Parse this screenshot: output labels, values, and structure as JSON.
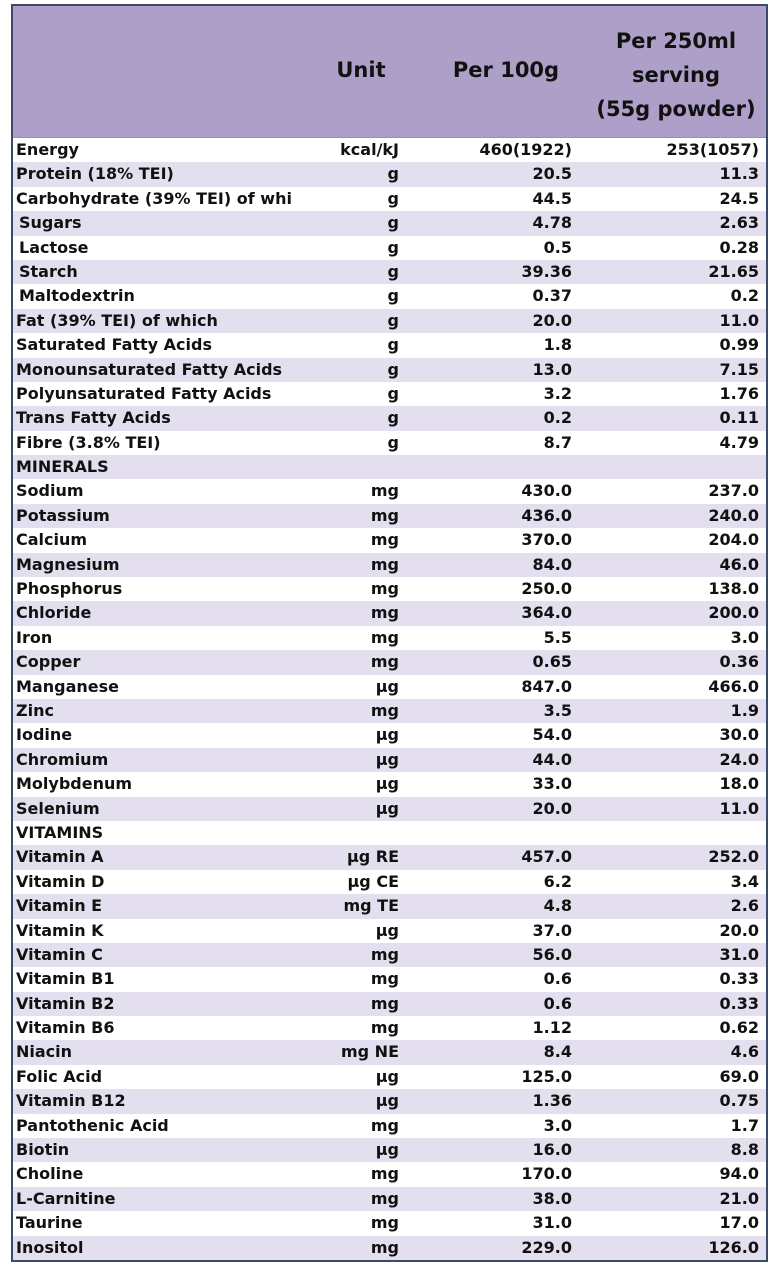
{
  "header": {
    "name": "",
    "unit": "Unit",
    "per_100g": "Per 100g",
    "per_serving_lines": [
      "Per 250ml",
      "serving",
      "(55g powder)"
    ]
  },
  "colors": {
    "header_bg": "#ae9fc8",
    "stripe_bg": "#e3dfee",
    "border": "#3b4a6b"
  },
  "rows": [
    {
      "name": "Energy",
      "unit": "kcal/kJ",
      "per_100g": "460(1922)",
      "per_serving": "253(1057)"
    },
    {
      "name": "Protein (18% TEI)",
      "unit": "g",
      "per_100g": "20.5",
      "per_serving": "11.3"
    },
    {
      "name": "Carbohydrate (39% TEI) of whi",
      "unit": "g",
      "per_100g": "44.5",
      "per_serving": "24.5"
    },
    {
      "name": "Sugars",
      "unit": "g",
      "per_100g": "4.78",
      "per_serving": "2.63",
      "indent": true
    },
    {
      "name": "Lactose",
      "unit": "g",
      "per_100g": "0.5",
      "per_serving": "0.28",
      "indent": true
    },
    {
      "name": "Starch",
      "unit": "g",
      "per_100g": "39.36",
      "per_serving": "21.65",
      "indent": true
    },
    {
      "name": "Maltodextrin",
      "unit": "g",
      "per_100g": "0.37",
      "per_serving": "0.2",
      "indent": true
    },
    {
      "name": "Fat (39% TEI) of which",
      "unit": "g",
      "per_100g": "20.0",
      "per_serving": "11.0"
    },
    {
      "name": "Saturated Fatty Acids",
      "unit": "g",
      "per_100g": "1.8",
      "per_serving": "0.99"
    },
    {
      "name": "Monounsaturated Fatty Acids",
      "unit": "g",
      "per_100g": "13.0",
      "per_serving": "7.15"
    },
    {
      "name": "Polyunsaturated Fatty Acids",
      "unit": "g",
      "per_100g": "3.2",
      "per_serving": "1.76"
    },
    {
      "name": "Trans Fatty Acids",
      "unit": "g",
      "per_100g": "0.2",
      "per_serving": "0.11"
    },
    {
      "name": "Fibre (3.8% TEI)",
      "unit": "g",
      "per_100g": "8.7",
      "per_serving": "4.79"
    },
    {
      "name": "MINERALS",
      "unit": "",
      "per_100g": "",
      "per_serving": ""
    },
    {
      "name": "Sodium",
      "unit": "mg",
      "per_100g": "430.0",
      "per_serving": "237.0"
    },
    {
      "name": "Potassium",
      "unit": "mg",
      "per_100g": "436.0",
      "per_serving": "240.0"
    },
    {
      "name": "Calcium",
      "unit": "mg",
      "per_100g": "370.0",
      "per_serving": "204.0"
    },
    {
      "name": "Magnesium",
      "unit": "mg",
      "per_100g": "84.0",
      "per_serving": "46.0"
    },
    {
      "name": "Phosphorus",
      "unit": "mg",
      "per_100g": "250.0",
      "per_serving": "138.0"
    },
    {
      "name": "Chloride",
      "unit": "mg",
      "per_100g": "364.0",
      "per_serving": "200.0"
    },
    {
      "name": "Iron",
      "unit": "mg",
      "per_100g": "5.5",
      "per_serving": "3.0"
    },
    {
      "name": "Copper",
      "unit": "mg",
      "per_100g": "0.65",
      "per_serving": "0.36"
    },
    {
      "name": "Manganese",
      "unit": "µg",
      "per_100g": "847.0",
      "per_serving": "466.0"
    },
    {
      "name": "Zinc",
      "unit": "mg",
      "per_100g": "3.5",
      "per_serving": "1.9"
    },
    {
      "name": "Iodine",
      "unit": "µg",
      "per_100g": "54.0",
      "per_serving": "30.0"
    },
    {
      "name": "Chromium",
      "unit": "µg",
      "per_100g": "44.0",
      "per_serving": "24.0"
    },
    {
      "name": "Molybdenum",
      "unit": "µg",
      "per_100g": "33.0",
      "per_serving": "18.0"
    },
    {
      "name": "Selenium",
      "unit": "µg",
      "per_100g": "20.0",
      "per_serving": "11.0"
    },
    {
      "name": "VITAMINS",
      "unit": "",
      "per_100g": "",
      "per_serving": ""
    },
    {
      "name": "Vitamin A",
      "unit": "µg RE",
      "per_100g": "457.0",
      "per_serving": "252.0"
    },
    {
      "name": "Vitamin D",
      "unit": "µg CE",
      "per_100g": "6.2",
      "per_serving": "3.4"
    },
    {
      "name": "Vitamin E",
      "unit": "mg TE",
      "per_100g": "4.8",
      "per_serving": "2.6"
    },
    {
      "name": "Vitamin K",
      "unit": "µg",
      "per_100g": "37.0",
      "per_serving": "20.0"
    },
    {
      "name": "Vitamin C",
      "unit": "mg",
      "per_100g": "56.0",
      "per_serving": "31.0"
    },
    {
      "name": "Vitamin B1",
      "unit": "mg",
      "per_100g": "0.6",
      "per_serving": "0.33"
    },
    {
      "name": "Vitamin B2",
      "unit": "mg",
      "per_100g": "0.6",
      "per_serving": "0.33"
    },
    {
      "name": "Vitamin B6",
      "unit": "mg",
      "per_100g": "1.12",
      "per_serving": "0.62"
    },
    {
      "name": "Niacin",
      "unit": "mg NE",
      "per_100g": "8.4",
      "per_serving": "4.6"
    },
    {
      "name": "Folic Acid",
      "unit": "µg",
      "per_100g": "125.0",
      "per_serving": "69.0"
    },
    {
      "name": "Vitamin B12",
      "unit": "µg",
      "per_100g": "1.36",
      "per_serving": "0.75"
    },
    {
      "name": "Pantothenic Acid",
      "unit": "mg",
      "per_100g": "3.0",
      "per_serving": "1.7"
    },
    {
      "name": "Biotin",
      "unit": "µg",
      "per_100g": "16.0",
      "per_serving": "8.8"
    },
    {
      "name": "Choline",
      "unit": "mg",
      "per_100g": "170.0",
      "per_serving": "94.0"
    },
    {
      "name": "L-Carnitine",
      "unit": "mg",
      "per_100g": "38.0",
      "per_serving": "21.0"
    },
    {
      "name": "Taurine",
      "unit": "mg",
      "per_100g": "31.0",
      "per_serving": "17.0"
    },
    {
      "name": "Inositol",
      "unit": "mg",
      "per_100g": "229.0",
      "per_serving": "126.0"
    }
  ]
}
